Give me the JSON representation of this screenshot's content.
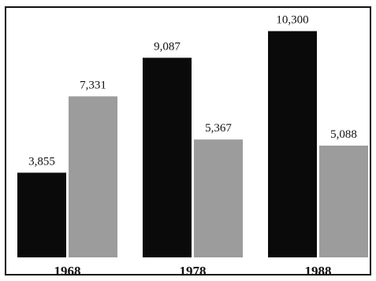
{
  "chart_data": {
    "type": "bar",
    "title": "",
    "xlabel": "",
    "ylabel": "",
    "categories": [
      "1968",
      "1978",
      "1988"
    ],
    "category_labels": [
      "1968",
      "1978",
      "1988"
    ],
    "series": [
      {
        "values": [
          3855,
          9087,
          10300
        ],
        "value_labels": [
          "3,855",
          "9,087",
          "10,300"
        ],
        "color": "#0a0a0a"
      },
      {
        "values": [
          7331,
          5367,
          5088
        ],
        "value_labels": [
          "7,331",
          "5,367",
          "5,088"
        ],
        "color": "#9c9c9c"
      }
    ],
    "ylim": [
      0,
      11000
    ],
    "grid": false,
    "legend": "none"
  }
}
